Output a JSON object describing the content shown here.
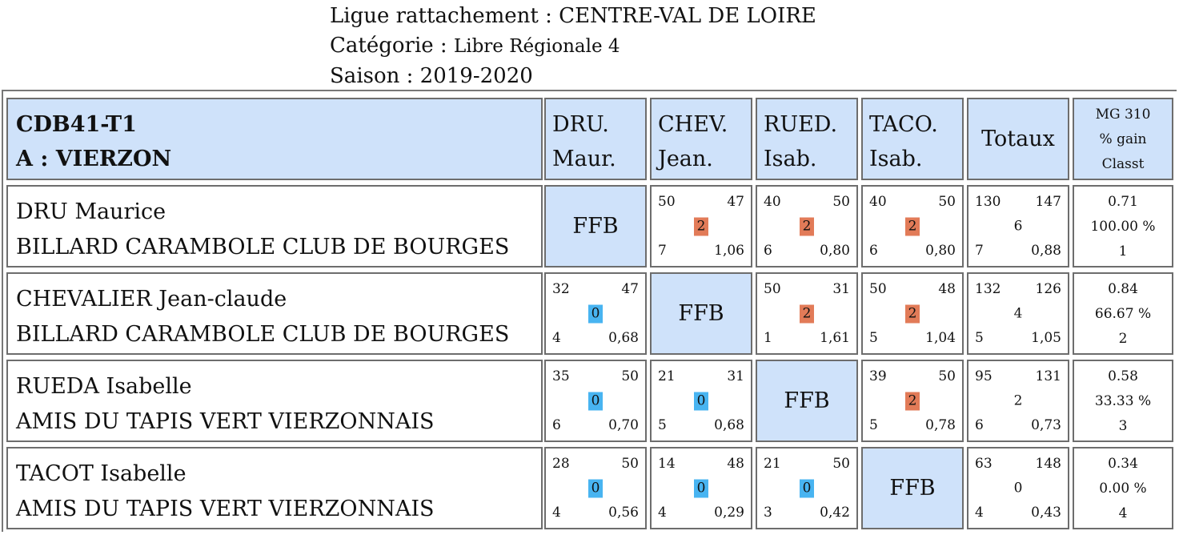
{
  "header": {
    "ligue_label": "Ligue rattachement :",
    "ligue_value": "CENTRE-VAL DE LOIRE",
    "categorie_label": "Catégorie :",
    "categorie_value": "Libre Régionale 4",
    "saison_label": "Saison :",
    "saison_value": "2019-2020"
  },
  "table": {
    "team_code": "CDB41-T1",
    "team_name": "A : VIERZON",
    "columns": [
      {
        "line1": "DRU.",
        "line2": "Maur."
      },
      {
        "line1": "CHEV.",
        "line2": "Jean."
      },
      {
        "line1": "RUED.",
        "line2": "Isab."
      },
      {
        "line1": "TACO.",
        "line2": "Isab."
      }
    ],
    "totaux_label": "Totaux",
    "mg_label": "MG 310",
    "gain_label": "% gain",
    "classt_label": "Classt",
    "ffb_label": "FFB",
    "rows": [
      {
        "name": "DRU Maurice",
        "club": "BILLARD CARAMBOLE CLUB DE BOURGES",
        "cells": [
          null,
          {
            "pts_made": "50",
            "pts_target": "47",
            "match_pts": "2",
            "result": "win",
            "innings": "7",
            "avg": "1,06"
          },
          {
            "pts_made": "40",
            "pts_target": "50",
            "match_pts": "2",
            "result": "win",
            "innings": "6",
            "avg": "0,80"
          },
          {
            "pts_made": "40",
            "pts_target": "50",
            "match_pts": "2",
            "result": "win",
            "innings": "6",
            "avg": "0,80"
          }
        ],
        "totals": {
          "pts_made": "130",
          "pts_target": "147",
          "match_pts": "6",
          "innings": "7",
          "avg": "0,88"
        },
        "mg": "0.71",
        "gain": "100.00 %",
        "classt": "1"
      },
      {
        "name": "CHEVALIER Jean-claude",
        "club": "BILLARD CARAMBOLE CLUB DE BOURGES",
        "cells": [
          {
            "pts_made": "32",
            "pts_target": "47",
            "match_pts": "0",
            "result": "loss",
            "innings": "4",
            "avg": "0,68"
          },
          null,
          {
            "pts_made": "50",
            "pts_target": "31",
            "match_pts": "2",
            "result": "win",
            "innings": "1",
            "avg": "1,61"
          },
          {
            "pts_made": "50",
            "pts_target": "48",
            "match_pts": "2",
            "result": "win",
            "innings": "5",
            "avg": "1,04"
          }
        ],
        "totals": {
          "pts_made": "132",
          "pts_target": "126",
          "match_pts": "4",
          "innings": "5",
          "avg": "1,05"
        },
        "mg": "0.84",
        "gain": "66.67 %",
        "classt": "2"
      },
      {
        "name": "RUEDA Isabelle",
        "club": "AMIS DU TAPIS VERT VIERZONNAIS",
        "cells": [
          {
            "pts_made": "35",
            "pts_target": "50",
            "match_pts": "0",
            "result": "loss",
            "innings": "6",
            "avg": "0,70"
          },
          {
            "pts_made": "21",
            "pts_target": "31",
            "match_pts": "0",
            "result": "loss",
            "innings": "5",
            "avg": "0,68"
          },
          null,
          {
            "pts_made": "39",
            "pts_target": "50",
            "match_pts": "2",
            "result": "win",
            "innings": "5",
            "avg": "0,78"
          }
        ],
        "totals": {
          "pts_made": "95",
          "pts_target": "131",
          "match_pts": "2",
          "innings": "6",
          "avg": "0,73"
        },
        "mg": "0.58",
        "gain": "33.33 %",
        "classt": "3"
      },
      {
        "name": "TACOT Isabelle",
        "club": "AMIS DU TAPIS VERT VIERZONNAIS",
        "cells": [
          {
            "pts_made": "28",
            "pts_target": "50",
            "match_pts": "0",
            "result": "loss",
            "innings": "4",
            "avg": "0,56"
          },
          {
            "pts_made": "14",
            "pts_target": "48",
            "match_pts": "0",
            "result": "loss",
            "innings": "4",
            "avg": "0,29"
          },
          {
            "pts_made": "21",
            "pts_target": "50",
            "match_pts": "0",
            "result": "loss",
            "innings": "3",
            "avg": "0,42"
          },
          null
        ],
        "totals": {
          "pts_made": "63",
          "pts_target": "148",
          "match_pts": "0",
          "innings": "4",
          "avg": "0,43"
        },
        "mg": "0.34",
        "gain": "0.00 %",
        "classt": "4"
      }
    ]
  },
  "colors": {
    "header_bg": "#cfe2fa",
    "win_badge": "#e27b58",
    "loss_badge": "#48b4f1",
    "border": "#6d6d6d"
  }
}
